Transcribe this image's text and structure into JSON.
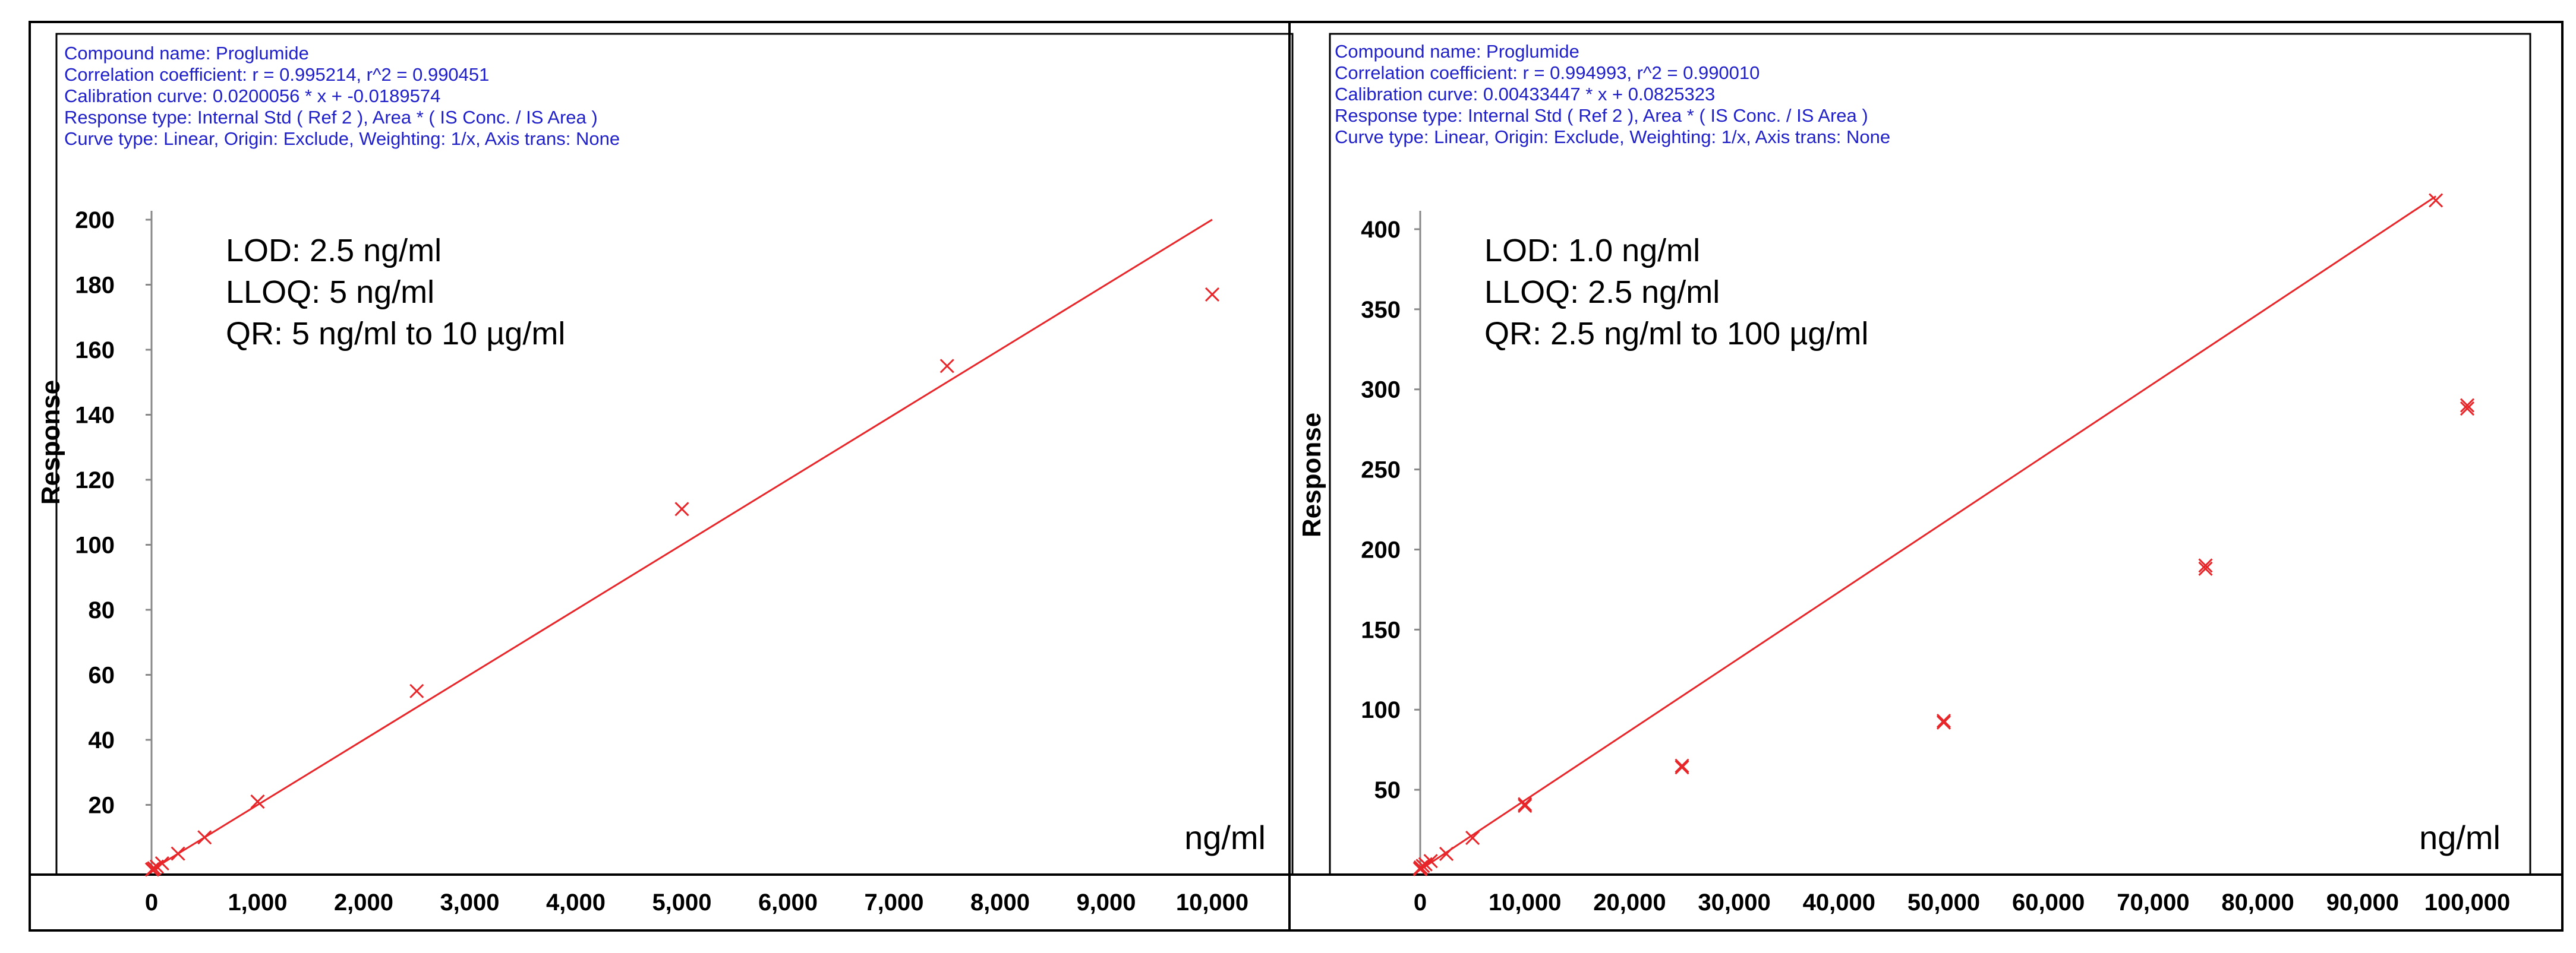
{
  "colors": {
    "fit_line": "#e8262a",
    "header_text": "#2020c8",
    "frame": "#000000"
  },
  "chart_data": [
    {
      "type": "scatter",
      "header": [
        "Compound name: Proglumide",
        "Correlation coefficient: r = 0.995214, r^2 = 0.990451",
        "Calibration curve: 0.0200056 * x + -0.0189574",
        "Response type: Internal Std ( Ref 2 ), Area * ( IS Conc. / IS Area )",
        "Curve type: Linear, Origin: Exclude, Weighting: 1/x, Axis trans: None"
      ],
      "annotations": [
        "LOD: 2.5 ng/ml",
        "LLOQ: 5 ng/ml",
        "QR: 5 ng/ml to 10 µg/ml"
      ],
      "ylabel": "Response",
      "xlabel": "ng/ml",
      "xlim": [
        0,
        10000
      ],
      "ylim": [
        0,
        200
      ],
      "x_ticks": [
        0,
        1000,
        2000,
        3000,
        4000,
        5000,
        6000,
        7000,
        8000,
        9000,
        10000
      ],
      "x_tick_labels": [
        "0",
        "1,000",
        "2,000",
        "3,000",
        "4,000",
        "5,000",
        "6,000",
        "7,000",
        "8,000",
        "9,000",
        "10,000"
      ],
      "y_ticks": [
        20,
        40,
        60,
        80,
        100,
        120,
        140,
        160,
        180,
        200
      ],
      "y_tick_labels": [
        "20",
        "40",
        "60",
        "80",
        "100",
        "120",
        "140",
        "160",
        "180",
        "200"
      ],
      "fit": {
        "slope": 0.0200056,
        "intercept": -0.0189574,
        "x_end": 10000
      },
      "points": [
        {
          "x": 5,
          "y": 0.1
        },
        {
          "x": 10,
          "y": 0.2
        },
        {
          "x": 25,
          "y": 0.5
        },
        {
          "x": 50,
          "y": 1.0
        },
        {
          "x": 100,
          "y": 2.0
        },
        {
          "x": 250,
          "y": 5.0
        },
        {
          "x": 500,
          "y": 10.0
        },
        {
          "x": 1000,
          "y": 21.0
        },
        {
          "x": 2500,
          "y": 55.0
        },
        {
          "x": 5000,
          "y": 111.0
        },
        {
          "x": 7500,
          "y": 155.0
        },
        {
          "x": 10000,
          "y": 177.0
        }
      ]
    },
    {
      "type": "scatter",
      "header": [
        "Compound name: Proglumide",
        "Correlation coefficient: r = 0.994993, r^2 = 0.990010",
        "Calibration curve: 0.00433447 * x + 0.0825323",
        "Response type: Internal Std ( Ref 2 ), Area * ( IS Conc. / IS Area )",
        "Curve type: Linear, Origin: Exclude, Weighting: 1/x, Axis trans: None"
      ],
      "annotations": [
        "LOD: 1.0 ng/ml",
        "LLOQ: 2.5 ng/ml",
        "QR: 2.5 ng/ml to 100 µg/ml"
      ],
      "ylabel": "Response",
      "xlabel": "ng/ml",
      "xlim": [
        0,
        100000
      ],
      "ylim": [
        0,
        420
      ],
      "x_ticks": [
        0,
        10000,
        20000,
        30000,
        40000,
        50000,
        60000,
        70000,
        80000,
        90000,
        100000
      ],
      "x_tick_labels": [
        "0",
        "10,000",
        "20,000",
        "30,000",
        "40,000",
        "50,000",
        "60,000",
        "70,000",
        "80,000",
        "90,000",
        "100,000"
      ],
      "y_ticks": [
        50,
        100,
        150,
        200,
        250,
        300,
        350,
        400
      ],
      "y_tick_labels": [
        "50",
        "100",
        "150",
        "200",
        "250",
        "300",
        "350",
        "400"
      ],
      "fit": {
        "slope": 0.00433447,
        "intercept": 0.0825323,
        "x_end": 97000
      },
      "points": [
        {
          "x": 2.5,
          "y": 0.5
        },
        {
          "x": 5,
          "y": 0.6
        },
        {
          "x": 10,
          "y": 0.8
        },
        {
          "x": 25,
          "y": 1.0
        },
        {
          "x": 50,
          "y": 1.5
        },
        {
          "x": 250,
          "y": 2.5
        },
        {
          "x": 500,
          "y": 3.5
        },
        {
          "x": 1000,
          "y": 5.5
        },
        {
          "x": 2500,
          "y": 10.0
        },
        {
          "x": 5000,
          "y": 20.0
        },
        {
          "x": 10000,
          "y": 40.0
        },
        {
          "x": 10000,
          "y": 41.0
        },
        {
          "x": 25000,
          "y": 64.0
        },
        {
          "x": 25000,
          "y": 65.0
        },
        {
          "x": 50000,
          "y": 92.0
        },
        {
          "x": 50000,
          "y": 93.0
        },
        {
          "x": 75000,
          "y": 188.0
        },
        {
          "x": 75000,
          "y": 190.0
        },
        {
          "x": 100000,
          "y": 288.0
        },
        {
          "x": 100000,
          "y": 290.0
        },
        {
          "x": 97000,
          "y": 418.0
        }
      ]
    }
  ]
}
